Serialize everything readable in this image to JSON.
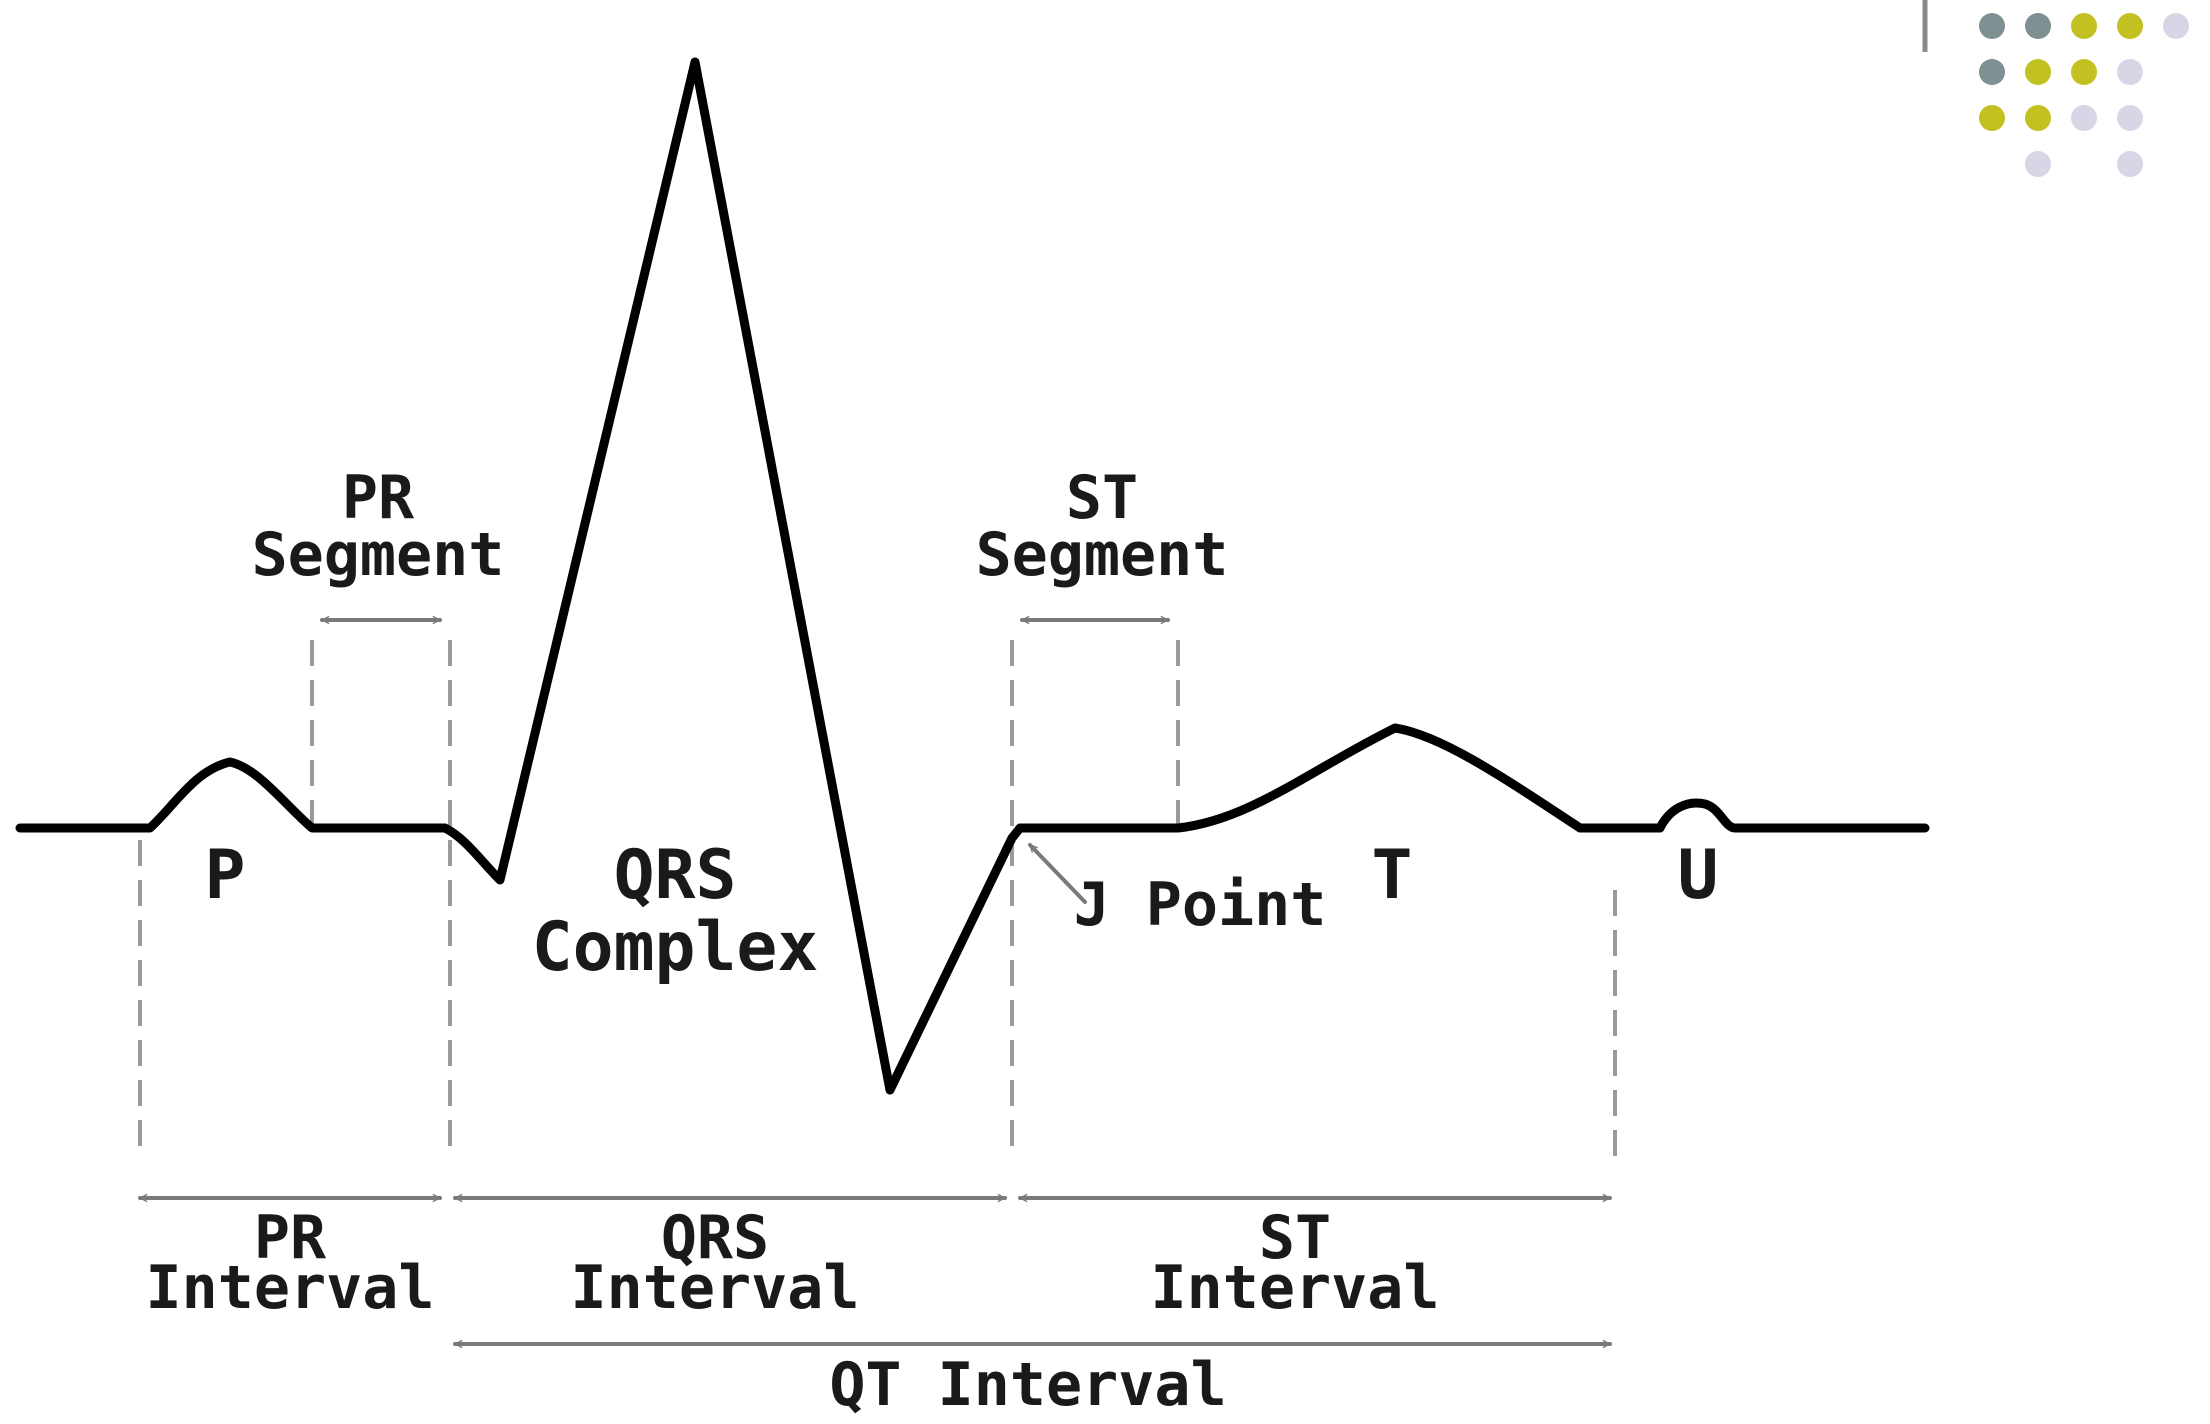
{
  "waves": {
    "p": "P",
    "qrs": [
      "QRS",
      "Complex"
    ],
    "t": "T",
    "u": "U"
  },
  "segments": {
    "pr": [
      "PR",
      "Segment"
    ],
    "st": [
      "ST",
      "Segment"
    ]
  },
  "j_point": "J Point",
  "intervals": {
    "pr": [
      "PR",
      "Interval"
    ],
    "qrs": [
      "QRS",
      "Interval"
    ],
    "st": [
      "ST",
      "Interval"
    ],
    "qt": "QT Interval"
  },
  "decor_dots": {
    "colors": {
      "gray": "#7f9093",
      "olive": "#c3c022",
      "lilac": "#d8d6e6"
    },
    "grid": [
      [
        "gray",
        "gray",
        "olive",
        "olive",
        "lilac"
      ],
      [
        "gray",
        "olive",
        "olive",
        "lilac",
        null
      ],
      [
        "olive",
        "olive",
        "lilac",
        "lilac",
        null
      ],
      [
        null,
        "lilac",
        null,
        "lilac",
        null
      ]
    ]
  }
}
